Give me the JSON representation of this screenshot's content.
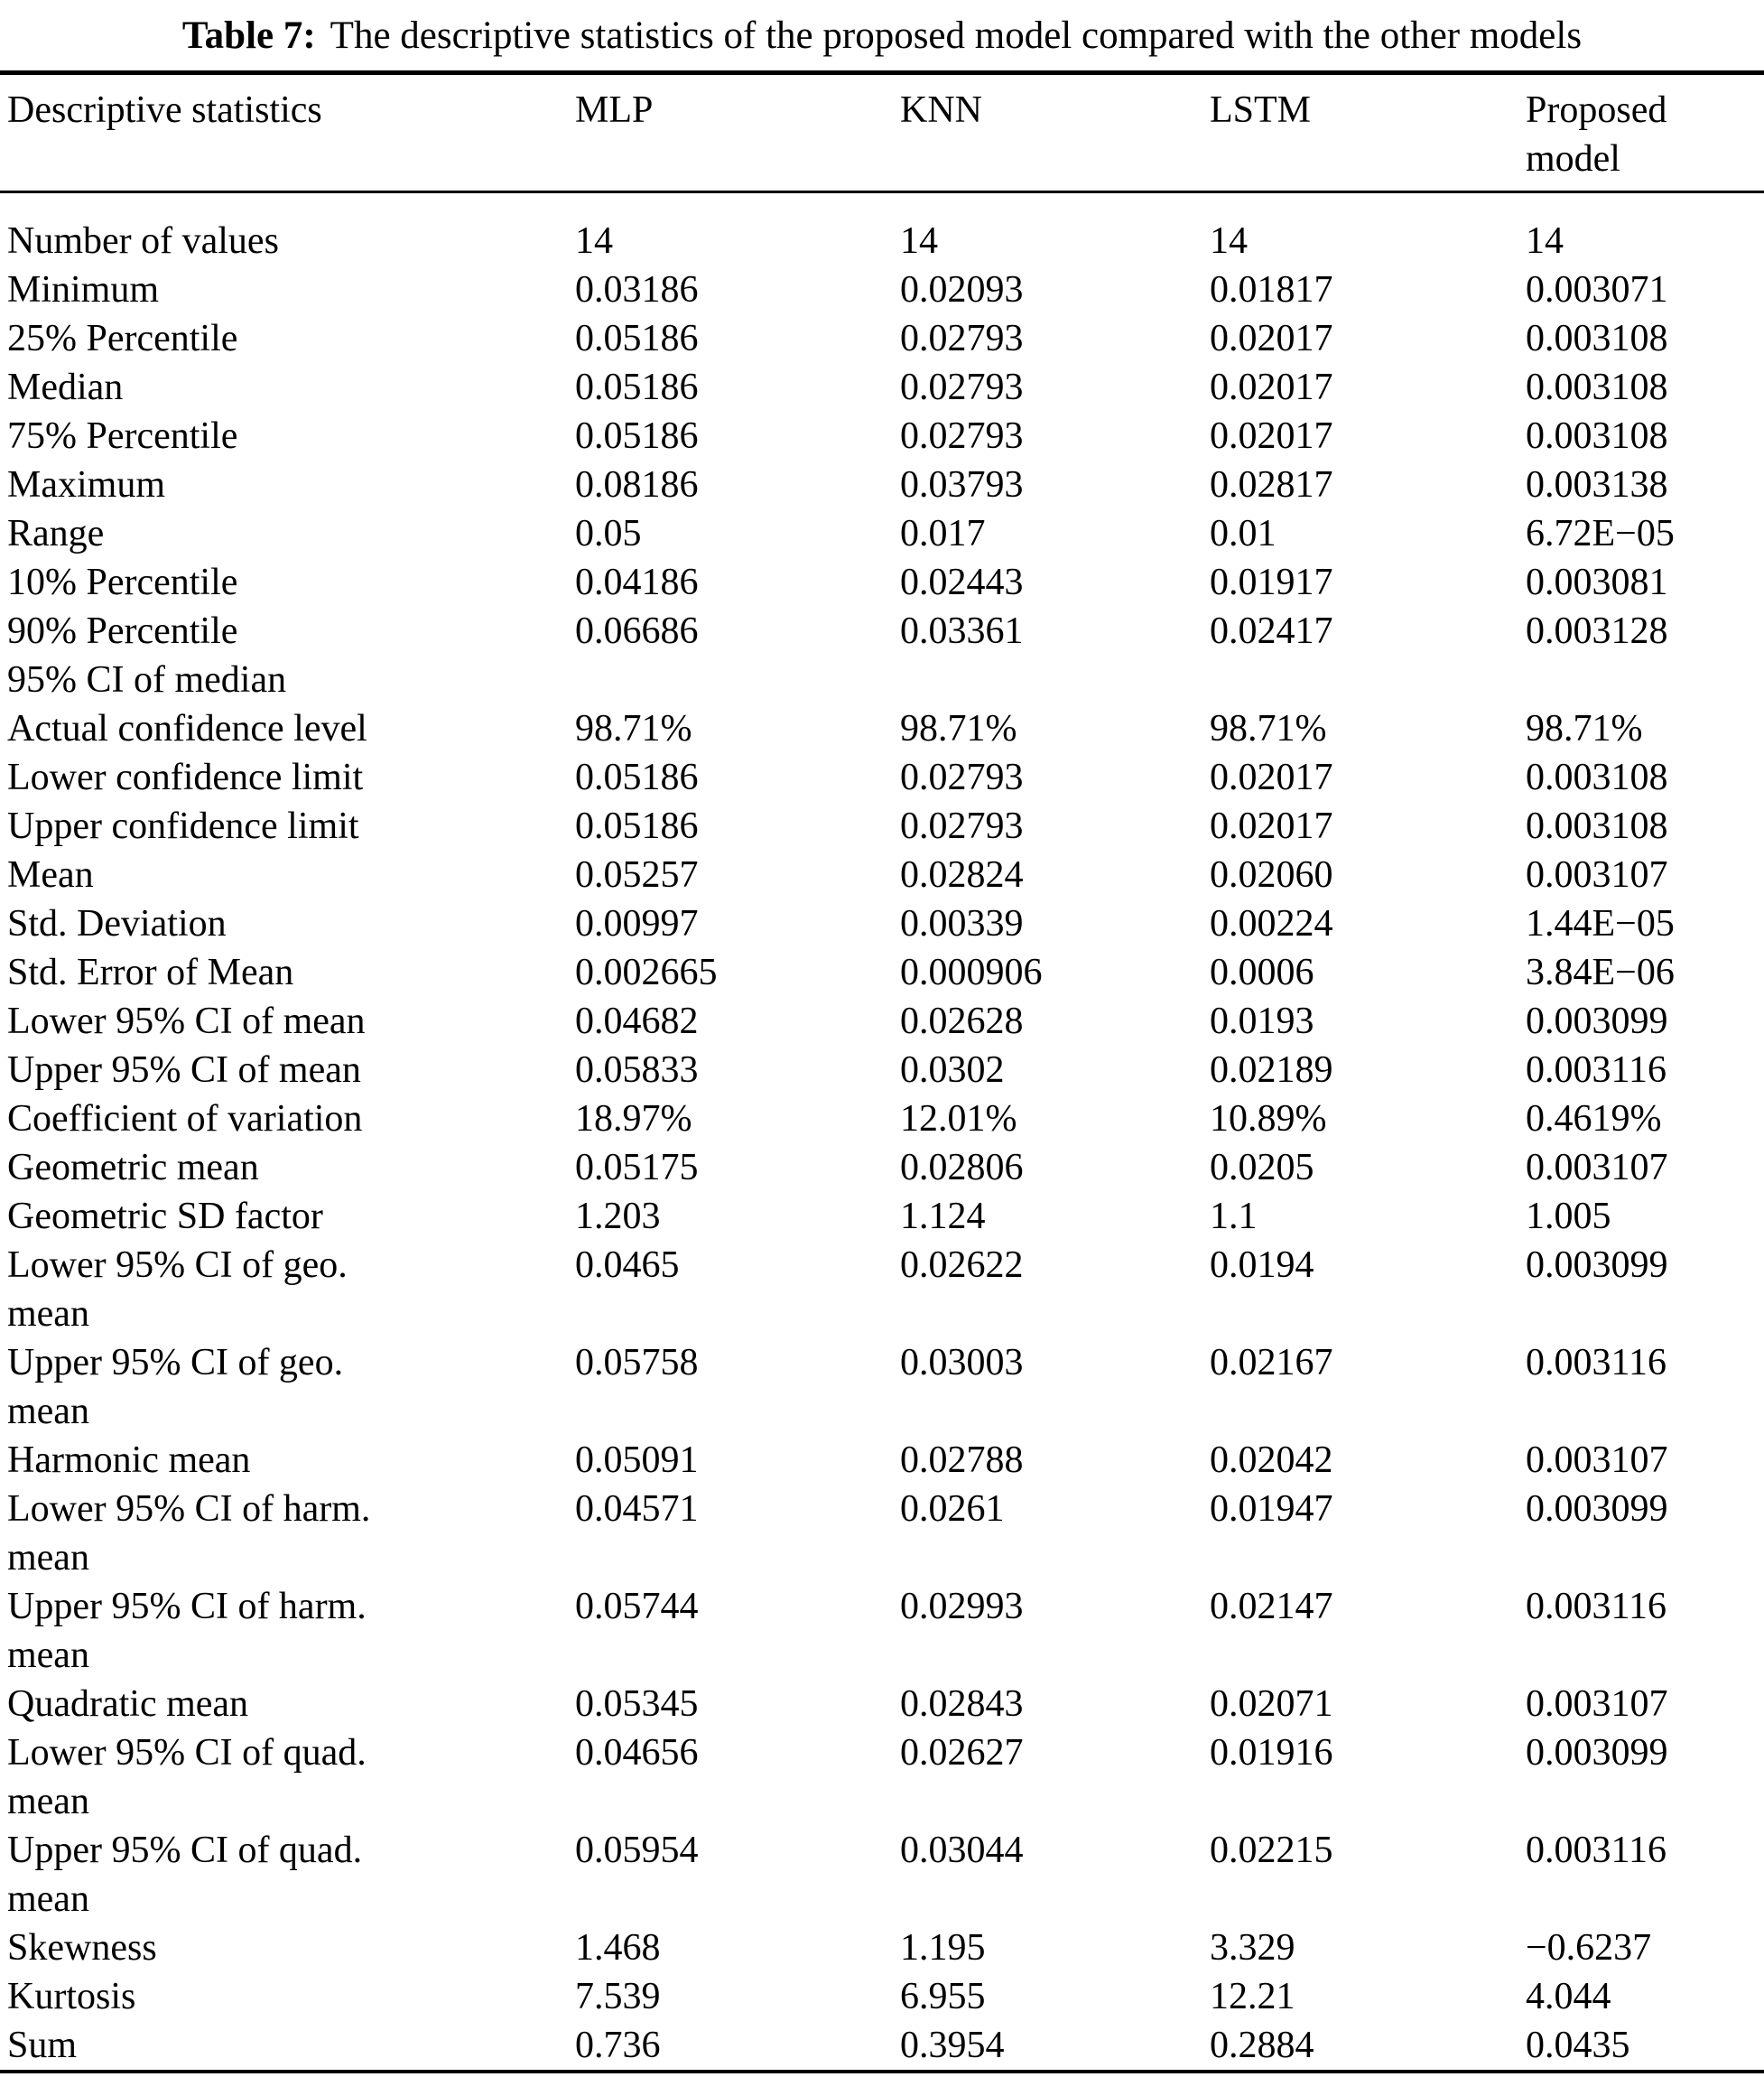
{
  "title": {
    "label": "Table 7:",
    "text": "The descriptive statistics of the proposed model compared with the other models"
  },
  "table": {
    "columns": [
      "Descriptive statistics",
      "MLP",
      "KNN",
      "LSTM",
      "Proposed\nmodel"
    ],
    "rows": [
      {
        "label": "Number of values",
        "values": [
          "14",
          "14",
          "14",
          "14"
        ]
      },
      {
        "label": "Minimum",
        "values": [
          "0.03186",
          "0.02093",
          "0.01817",
          "0.003071"
        ]
      },
      {
        "label": "25% Percentile",
        "values": [
          "0.05186",
          "0.02793",
          "0.02017",
          "0.003108"
        ]
      },
      {
        "label": "Median",
        "values": [
          "0.05186",
          "0.02793",
          "0.02017",
          "0.003108"
        ]
      },
      {
        "label": "75% Percentile",
        "values": [
          "0.05186",
          "0.02793",
          "0.02017",
          "0.003108"
        ]
      },
      {
        "label": "Maximum",
        "values": [
          "0.08186",
          "0.03793",
          "0.02817",
          "0.003138"
        ]
      },
      {
        "label": "Range",
        "values": [
          "0.05",
          "0.017",
          "0.01",
          "6.72E−05"
        ]
      },
      {
        "label": "10% Percentile",
        "values": [
          "0.04186",
          "0.02443",
          "0.01917",
          "0.003081"
        ]
      },
      {
        "label": "90% Percentile",
        "values": [
          "0.06686",
          "0.03361",
          "0.02417",
          "0.003128"
        ]
      },
      {
        "label": "95% CI of median",
        "values": [
          "",
          "",
          "",
          ""
        ]
      },
      {
        "label": "Actual confidence level",
        "values": [
          "98.71%",
          "98.71%",
          "98.71%",
          "98.71%"
        ]
      },
      {
        "label": "Lower confidence limit",
        "values": [
          "0.05186",
          "0.02793",
          "0.02017",
          "0.003108"
        ]
      },
      {
        "label": "Upper confidence limit",
        "values": [
          "0.05186",
          "0.02793",
          "0.02017",
          "0.003108"
        ]
      },
      {
        "label": "Mean",
        "values": [
          "0.05257",
          "0.02824",
          "0.02060",
          "0.003107"
        ]
      },
      {
        "label": "Std. Deviation",
        "values": [
          "0.00997",
          "0.00339",
          "0.00224",
          "1.44E−05"
        ]
      },
      {
        "label": "Std. Error of Mean",
        "values": [
          "0.002665",
          "0.000906",
          "0.0006",
          "3.84E−06"
        ]
      },
      {
        "label": "Lower 95% CI of mean",
        "values": [
          "0.04682",
          "0.02628",
          "0.0193",
          "0.003099"
        ]
      },
      {
        "label": "Upper 95% CI of mean",
        "values": [
          "0.05833",
          "0.0302",
          "0.02189",
          "0.003116"
        ]
      },
      {
        "label": "Coefficient of variation",
        "values": [
          "18.97%",
          "12.01%",
          "10.89%",
          "0.4619%"
        ]
      },
      {
        "label": "Geometric mean",
        "values": [
          "0.05175",
          "0.02806",
          "0.0205",
          "0.003107"
        ]
      },
      {
        "label": "Geometric SD factor",
        "values": [
          "1.203",
          "1.124",
          "1.1",
          "1.005"
        ]
      },
      {
        "label": "Lower 95% CI of geo.\nmean",
        "values": [
          "0.0465",
          "0.02622",
          "0.0194",
          "0.003099"
        ]
      },
      {
        "label": "Upper 95% CI of geo.\nmean",
        "values": [
          "0.05758",
          "0.03003",
          "0.02167",
          "0.003116"
        ]
      },
      {
        "label": "Harmonic mean",
        "values": [
          "0.05091",
          "0.02788",
          "0.02042",
          "0.003107"
        ]
      },
      {
        "label": "Lower 95% CI of harm.\nmean",
        "values": [
          "0.04571",
          "0.0261",
          "0.01947",
          "0.003099"
        ]
      },
      {
        "label": "Upper 95% CI of harm.\nmean",
        "values": [
          "0.05744",
          "0.02993",
          "0.02147",
          "0.003116"
        ]
      },
      {
        "label": "Quadratic mean",
        "values": [
          "0.05345",
          "0.02843",
          "0.02071",
          "0.003107"
        ]
      },
      {
        "label": "Lower 95% CI of quad.\nmean",
        "values": [
          "0.04656",
          "0.02627",
          "0.01916",
          "0.003099"
        ]
      },
      {
        "label": "Upper 95% CI of quad.\nmean",
        "values": [
          "0.05954",
          "0.03044",
          "0.02215",
          "0.003116"
        ]
      },
      {
        "label": "Skewness",
        "values": [
          "1.468",
          "1.195",
          "3.329",
          "−0.6237"
        ]
      },
      {
        "label": "Kurtosis",
        "values": [
          "7.539",
          "6.955",
          "12.21",
          "4.044"
        ]
      },
      {
        "label": "Sum",
        "values": [
          "0.736",
          "0.3954",
          "0.2884",
          "0.0435"
        ]
      }
    ]
  }
}
